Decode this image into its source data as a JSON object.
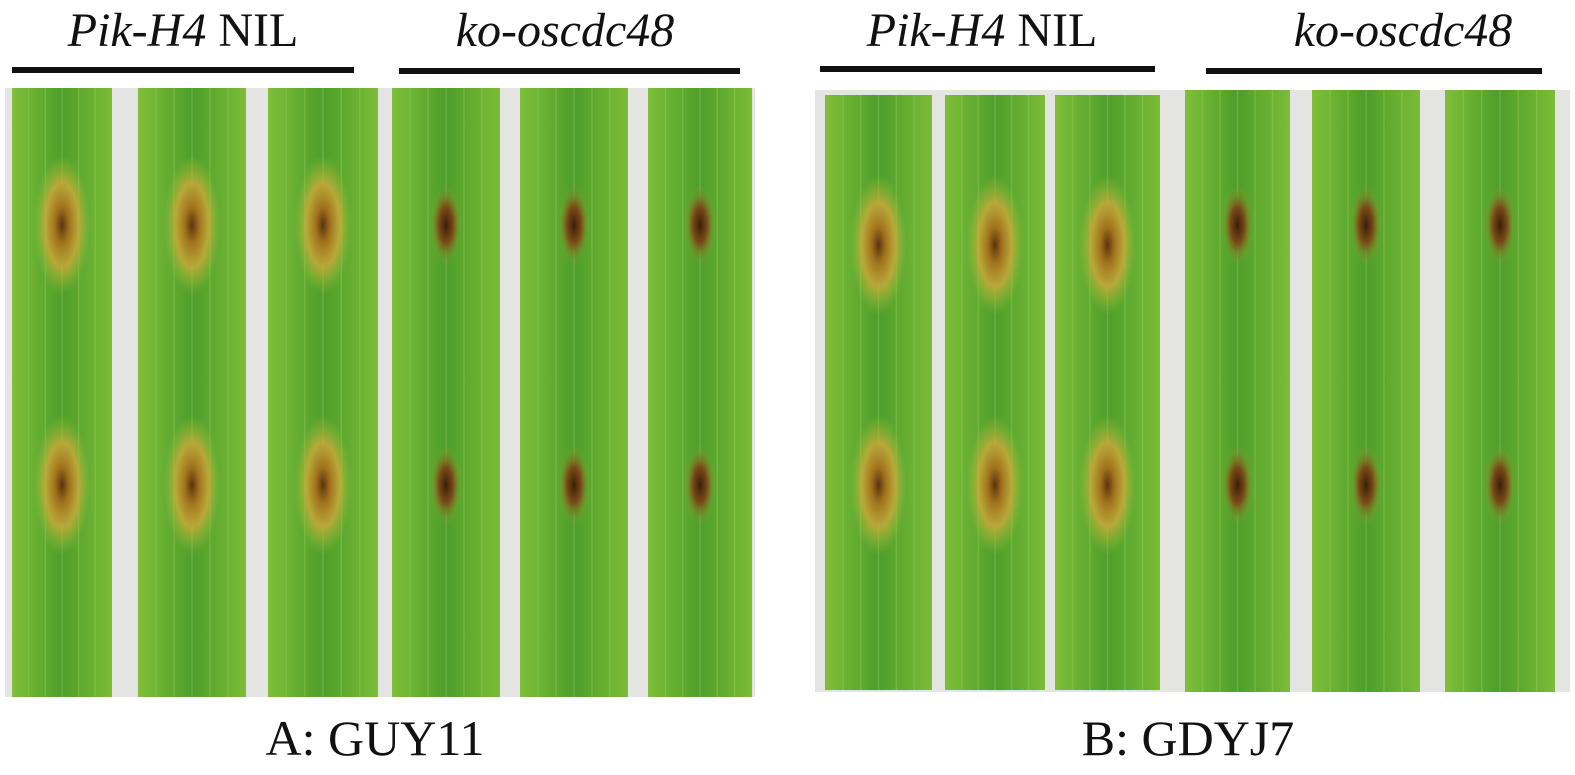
{
  "panels": [
    {
      "groups": [
        {
          "gene": "Pik-H4",
          "suffix": "NIL"
        },
        {
          "gene": "ko-oscdc48"
        }
      ],
      "caption": "A: GUY11"
    },
    {
      "groups": [
        {
          "gene": "Pik-H4",
          "suffix": "NIL"
        },
        {
          "gene": "ko-oscdc48"
        }
      ],
      "caption": "B: GDYJ7"
    }
  ]
}
